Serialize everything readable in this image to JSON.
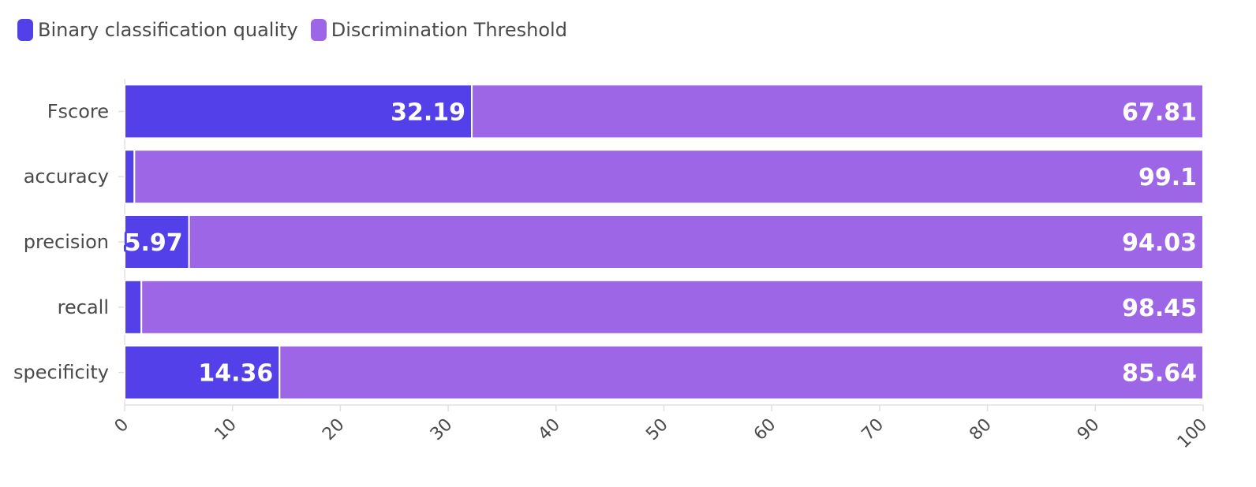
{
  "chart_data": {
    "type": "bar",
    "orientation": "horizontal",
    "stacked": true,
    "categories": [
      "Fscore",
      "accuracy",
      "precision",
      "recall",
      "specificity"
    ],
    "series": [
      {
        "name": "Binary classification quality",
        "color": "#5440e8",
        "values": [
          32.19,
          0.9,
          5.97,
          1.55,
          14.36
        ],
        "labels": [
          "32.19",
          "",
          "5.97",
          "",
          "14.36"
        ]
      },
      {
        "name": "Discrimination Threshold",
        "color": "#9c66e6",
        "values": [
          67.81,
          99.1,
          94.03,
          98.45,
          85.64
        ],
        "labels": [
          "67.81",
          "99.1",
          "94.03",
          "98.45",
          "85.64"
        ]
      }
    ],
    "xlim": [
      0,
      100
    ],
    "xticks": [
      "0",
      "10",
      "20",
      "30",
      "40",
      "50",
      "60",
      "70",
      "80",
      "90",
      "100"
    ],
    "legend_position": "top-left",
    "grid": false
  }
}
